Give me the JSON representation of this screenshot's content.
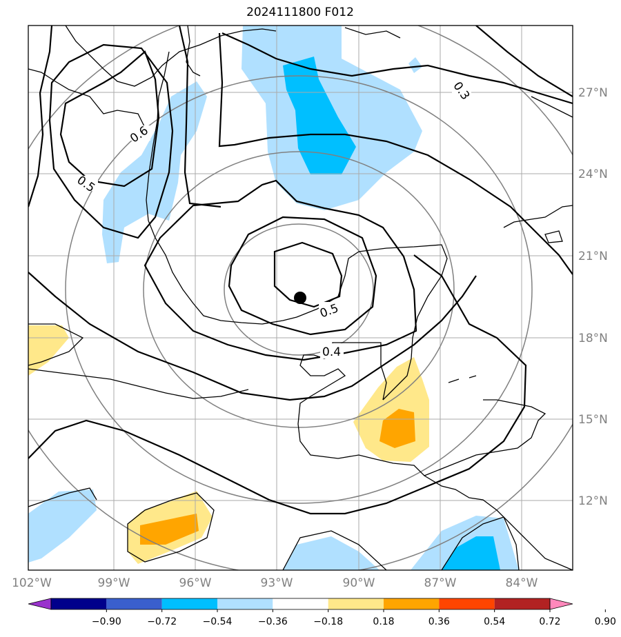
{
  "title": "2024111800 F012",
  "lon_ticks": [
    "102°W",
    "99°W",
    "96°W",
    "93°W",
    "90°W",
    "87°W",
    "84°W"
  ],
  "lat_ticks": [
    "27°N",
    "24°N",
    "21°N",
    "18°N",
    "15°N",
    "12°N"
  ],
  "colorbar": {
    "labels": [
      "−0.90",
      "−0.72",
      "−0.54",
      "−0.36",
      "−0.18",
      "0.18",
      "0.36",
      "0.54",
      "0.72",
      "0.90"
    ],
    "colors": [
      "#9932cc",
      "#00008b",
      "#3a5fcd",
      "#00bfff",
      "#b0e0ff",
      "#ffffff",
      "#ffe88a",
      "#ffa500",
      "#ff4500",
      "#b22222",
      "#ff88bb"
    ]
  },
  "contour_labels": [
    "0.3",
    "0.4",
    "0.5",
    "0.5",
    "0.6"
  ],
  "center_marker": {
    "lon": -92.3,
    "lat": 19.4
  },
  "colors": {
    "grid": "#aaaaaa",
    "range_rings": "#808080",
    "coast": "#000000",
    "light_blue": "#b0e0ff",
    "blue": "#00bfff",
    "yellow": "#ffe88a",
    "orange": "#ffa500"
  }
}
